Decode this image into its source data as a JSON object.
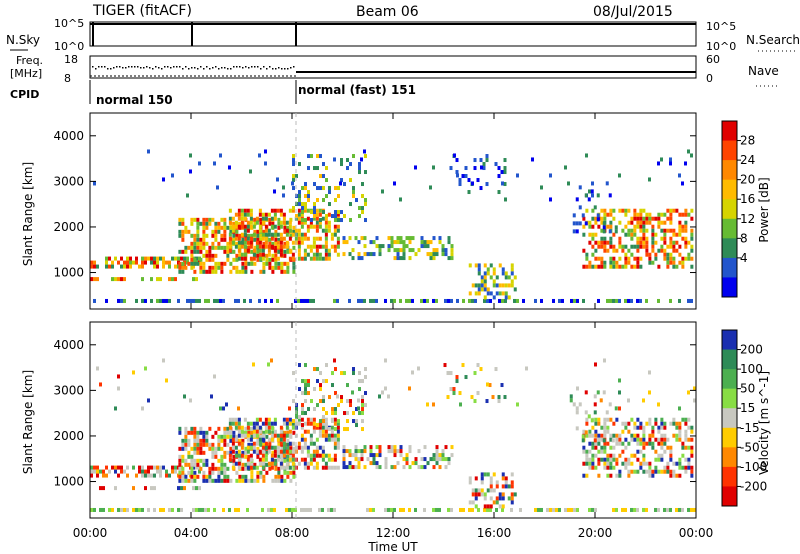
{
  "header": {
    "radar": "TIGER (fitACF)",
    "beam": "Beam 06",
    "date": "08/Jul/2015"
  },
  "panels": {
    "nsky": {
      "left_label": "N.Sky",
      "ticks_left": [
        "10^5",
        "10^0"
      ],
      "ticks_right": [
        "10^5",
        "10^0"
      ],
      "right_label": "N.Search"
    },
    "freq": {
      "left_label_1": "Freq.",
      "left_label_2": "[MHz]",
      "ticks_left": [
        "18",
        "8"
      ],
      "ticks_right": [
        "60",
        "0"
      ],
      "right_label": "Nave"
    },
    "cpid": {
      "label": "CPID",
      "modes": [
        "normal 150",
        "normal (fast) 151"
      ]
    }
  },
  "chart_data": [
    {
      "type": "heatmap",
      "title": "",
      "ylabel": "Slant Range [km]",
      "xlabel": "",
      "x_range_hours": [
        0,
        24
      ],
      "ylim": [
        200,
        4500
      ],
      "yticks": [
        "4000",
        "3000",
        "2000",
        "1000"
      ],
      "colorbar": {
        "label": "Power [dB]",
        "ticks": [
          "28",
          "24",
          "20",
          "16",
          "12",
          "8",
          "4"
        ],
        "colors": [
          "#e00000",
          "#ff4400",
          "#ff8800",
          "#ffbb00",
          "#d6d400",
          "#66bb33",
          "#2e8b57",
          "#2255cc",
          "#0000ee"
        ]
      }
    },
    {
      "type": "heatmap",
      "title": "",
      "ylabel": "Slant Range [km]",
      "xlabel": "Time UT",
      "x_range_hours": [
        0,
        24
      ],
      "ylim": [
        200,
        4500
      ],
      "yticks": [
        "4000",
        "3000",
        "2000",
        "1000"
      ],
      "xticks": [
        "00:00",
        "04:00",
        "08:00",
        "12:00",
        "16:00",
        "20:00",
        "00:00"
      ],
      "colorbar": {
        "label": "Velocity [m s^-1]",
        "ticks": [
          "200",
          "100",
          "50",
          "15",
          "-15",
          "-50",
          "-100",
          "-200"
        ],
        "colors": [
          "#1a2fb0",
          "#2e8b57",
          "#4caf50",
          "#88dd44",
          "#c8c8c0",
          "#ffcc00",
          "#ff8800",
          "#ff3300",
          "#e00000"
        ]
      }
    }
  ]
}
